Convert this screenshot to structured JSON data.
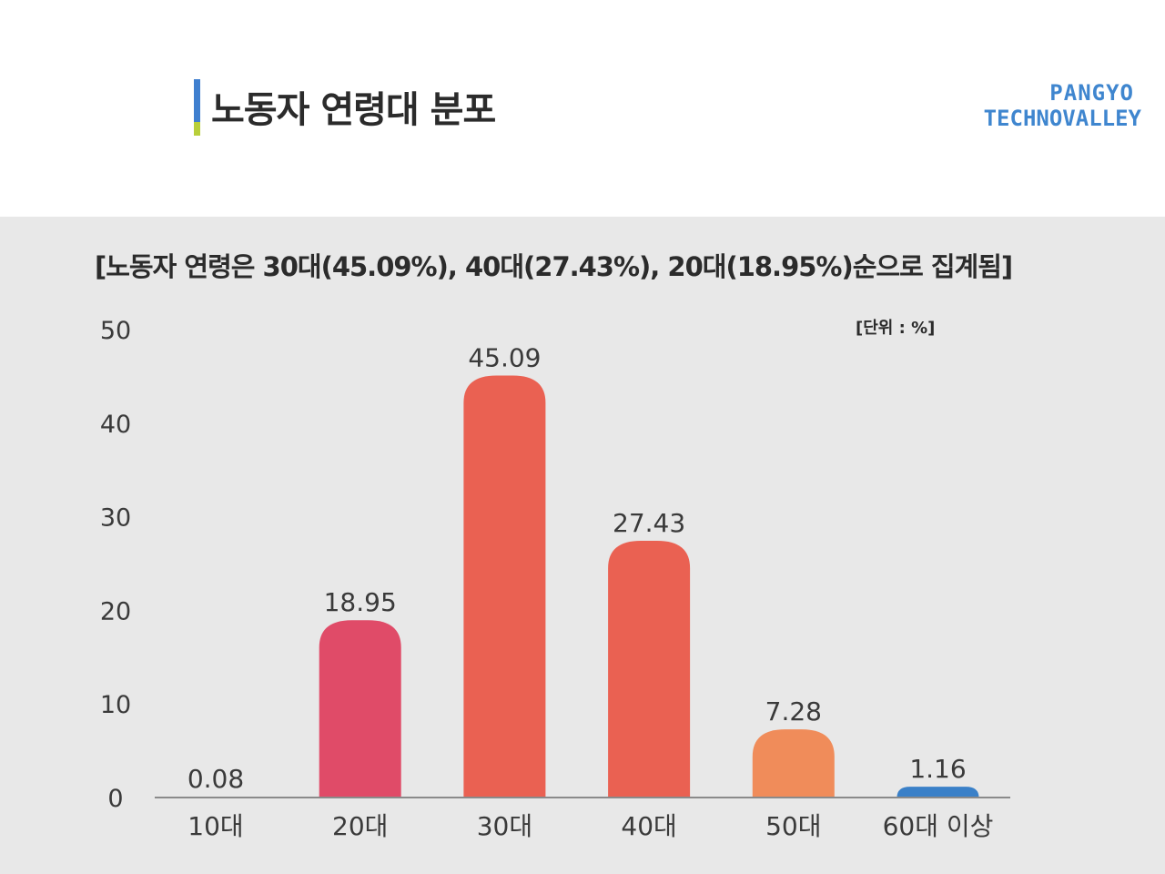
{
  "header": {
    "title": "노동자 연령대 분포",
    "logo_line1": "PANGYO",
    "logo_line2": "TECHNOVALLEY"
  },
  "chart_data": {
    "type": "bar",
    "title": "[노동자 연령은 30대(45.09%), 40대(27.43%), 20대(18.95%)순으로 집계됨]",
    "unit_label": "[단위 : %]",
    "categories": [
      "10대",
      "20대",
      "30대",
      "40대",
      "50대",
      "60대 이상"
    ],
    "values": [
      0.08,
      18.95,
      45.09,
      27.43,
      7.28,
      1.16
    ],
    "value_labels": [
      "0.08",
      "18.95",
      "45.09",
      "27.43",
      "7.28",
      "1.16"
    ],
    "colors": [
      "#d94a6a",
      "#e04b68",
      "#ea6152",
      "#ea6152",
      "#f08c5a",
      "#3a80c8"
    ],
    "ylim": [
      0,
      50
    ],
    "yticks": [
      0,
      10,
      20,
      30,
      40,
      50
    ],
    "xlabel": "",
    "ylabel": "",
    "grid": false,
    "legend": "none"
  }
}
